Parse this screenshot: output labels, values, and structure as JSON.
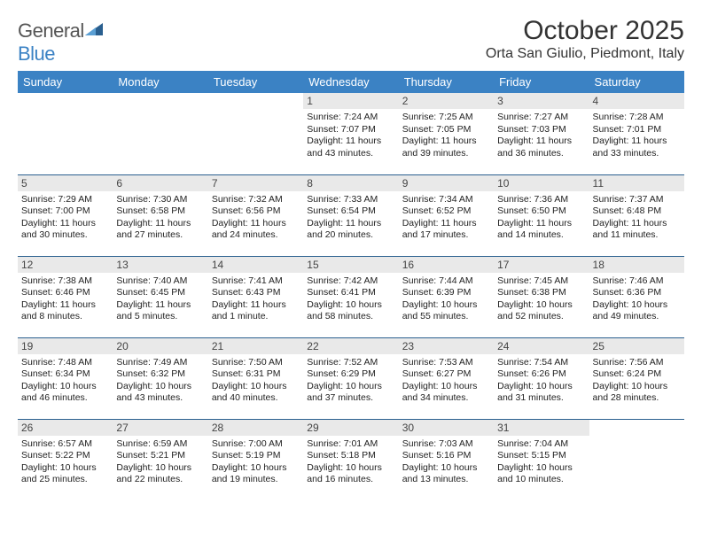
{
  "logo": {
    "text1": "General",
    "text2": "Blue",
    "mark_color": "#2a5f8f"
  },
  "title": {
    "month": "October 2025",
    "location": "Orta San Giulio, Piedmont, Italy"
  },
  "colors": {
    "header_bg": "#3b82c4",
    "header_fg": "#ffffff",
    "row_sep": "#2a5f8f",
    "daynum_bg": "#e9e9e9"
  },
  "weekdays": [
    "Sunday",
    "Monday",
    "Tuesday",
    "Wednesday",
    "Thursday",
    "Friday",
    "Saturday"
  ],
  "weeks": [
    [
      null,
      null,
      null,
      {
        "d": "1",
        "sr": "7:24 AM",
        "ss": "7:07 PM",
        "dl": "11 hours and 43 minutes."
      },
      {
        "d": "2",
        "sr": "7:25 AM",
        "ss": "7:05 PM",
        "dl": "11 hours and 39 minutes."
      },
      {
        "d": "3",
        "sr": "7:27 AM",
        "ss": "7:03 PM",
        "dl": "11 hours and 36 minutes."
      },
      {
        "d": "4",
        "sr": "7:28 AM",
        "ss": "7:01 PM",
        "dl": "11 hours and 33 minutes."
      }
    ],
    [
      {
        "d": "5",
        "sr": "7:29 AM",
        "ss": "7:00 PM",
        "dl": "11 hours and 30 minutes."
      },
      {
        "d": "6",
        "sr": "7:30 AM",
        "ss": "6:58 PM",
        "dl": "11 hours and 27 minutes."
      },
      {
        "d": "7",
        "sr": "7:32 AM",
        "ss": "6:56 PM",
        "dl": "11 hours and 24 minutes."
      },
      {
        "d": "8",
        "sr": "7:33 AM",
        "ss": "6:54 PM",
        "dl": "11 hours and 20 minutes."
      },
      {
        "d": "9",
        "sr": "7:34 AM",
        "ss": "6:52 PM",
        "dl": "11 hours and 17 minutes."
      },
      {
        "d": "10",
        "sr": "7:36 AM",
        "ss": "6:50 PM",
        "dl": "11 hours and 14 minutes."
      },
      {
        "d": "11",
        "sr": "7:37 AM",
        "ss": "6:48 PM",
        "dl": "11 hours and 11 minutes."
      }
    ],
    [
      {
        "d": "12",
        "sr": "7:38 AM",
        "ss": "6:46 PM",
        "dl": "11 hours and 8 minutes."
      },
      {
        "d": "13",
        "sr": "7:40 AM",
        "ss": "6:45 PM",
        "dl": "11 hours and 5 minutes."
      },
      {
        "d": "14",
        "sr": "7:41 AM",
        "ss": "6:43 PM",
        "dl": "11 hours and 1 minute."
      },
      {
        "d": "15",
        "sr": "7:42 AM",
        "ss": "6:41 PM",
        "dl": "10 hours and 58 minutes."
      },
      {
        "d": "16",
        "sr": "7:44 AM",
        "ss": "6:39 PM",
        "dl": "10 hours and 55 minutes."
      },
      {
        "d": "17",
        "sr": "7:45 AM",
        "ss": "6:38 PM",
        "dl": "10 hours and 52 minutes."
      },
      {
        "d": "18",
        "sr": "7:46 AM",
        "ss": "6:36 PM",
        "dl": "10 hours and 49 minutes."
      }
    ],
    [
      {
        "d": "19",
        "sr": "7:48 AM",
        "ss": "6:34 PM",
        "dl": "10 hours and 46 minutes."
      },
      {
        "d": "20",
        "sr": "7:49 AM",
        "ss": "6:32 PM",
        "dl": "10 hours and 43 minutes."
      },
      {
        "d": "21",
        "sr": "7:50 AM",
        "ss": "6:31 PM",
        "dl": "10 hours and 40 minutes."
      },
      {
        "d": "22",
        "sr": "7:52 AM",
        "ss": "6:29 PM",
        "dl": "10 hours and 37 minutes."
      },
      {
        "d": "23",
        "sr": "7:53 AM",
        "ss": "6:27 PM",
        "dl": "10 hours and 34 minutes."
      },
      {
        "d": "24",
        "sr": "7:54 AM",
        "ss": "6:26 PM",
        "dl": "10 hours and 31 minutes."
      },
      {
        "d": "25",
        "sr": "7:56 AM",
        "ss": "6:24 PM",
        "dl": "10 hours and 28 minutes."
      }
    ],
    [
      {
        "d": "26",
        "sr": "6:57 AM",
        "ss": "5:22 PM",
        "dl": "10 hours and 25 minutes."
      },
      {
        "d": "27",
        "sr": "6:59 AM",
        "ss": "5:21 PM",
        "dl": "10 hours and 22 minutes."
      },
      {
        "d": "28",
        "sr": "7:00 AM",
        "ss": "5:19 PM",
        "dl": "10 hours and 19 minutes."
      },
      {
        "d": "29",
        "sr": "7:01 AM",
        "ss": "5:18 PM",
        "dl": "10 hours and 16 minutes."
      },
      {
        "d": "30",
        "sr": "7:03 AM",
        "ss": "5:16 PM",
        "dl": "10 hours and 13 minutes."
      },
      {
        "d": "31",
        "sr": "7:04 AM",
        "ss": "5:15 PM",
        "dl": "10 hours and 10 minutes."
      },
      null
    ]
  ],
  "labels": {
    "sunrise": "Sunrise: ",
    "sunset": "Sunset: ",
    "daylight": "Daylight: "
  }
}
